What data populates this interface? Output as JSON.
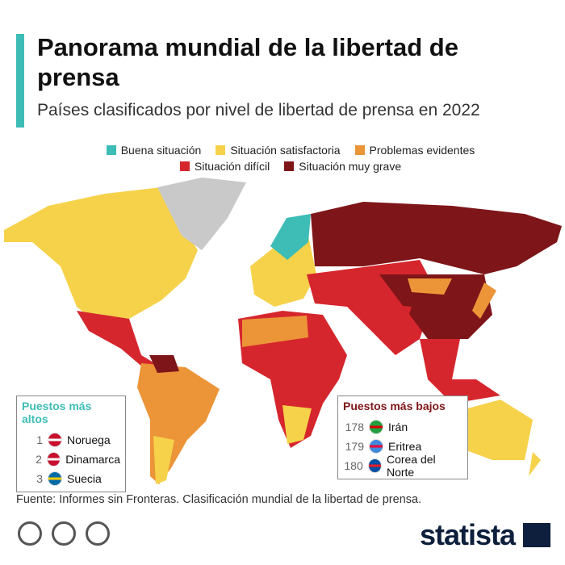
{
  "header": {
    "title": "Panorama mundial de la libertad de prensa",
    "subtitle": "Países clasificados por nivel de libertad de prensa en 2022"
  },
  "legend": {
    "items": [
      {
        "label": "Buena situación",
        "color": "#3dbdb6"
      },
      {
        "label": "Situación satisfactoria",
        "color": "#f6d24a"
      },
      {
        "label": "Problemas evidentes",
        "color": "#ec9438"
      },
      {
        "label": "Situación difícil",
        "color": "#d6262d"
      },
      {
        "label": "Situación muy grave",
        "color": "#7e1518"
      }
    ]
  },
  "top_ranks": {
    "title": "Puestos más altos",
    "rows": [
      {
        "rank": 1,
        "country": "Noruega"
      },
      {
        "rank": 2,
        "country": "Dinamarca"
      },
      {
        "rank": 3,
        "country": "Suecia"
      }
    ]
  },
  "bottom_ranks": {
    "title": "Puestos más bajos",
    "rows": [
      {
        "rank": 178,
        "country": "Irán"
      },
      {
        "rank": 179,
        "country": "Eritrea"
      },
      {
        "rank": 180,
        "country": "Corea del Norte"
      }
    ]
  },
  "source": "Fuente: Informes sin Fronteras. Clasificación mundial de la libertad de prensa.",
  "brand": "statista"
}
